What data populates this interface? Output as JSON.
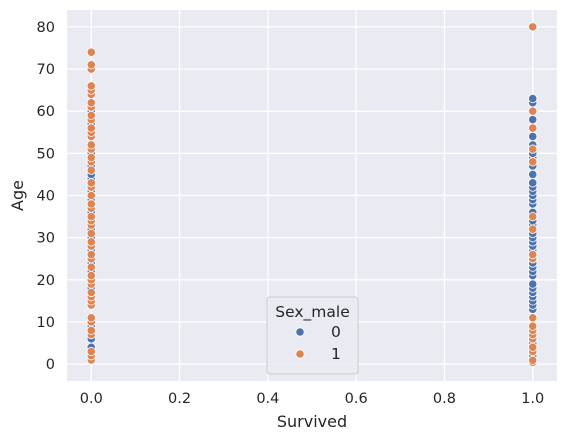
{
  "chart_data": {
    "type": "scatter",
    "title": "",
    "xlabel": "Survived",
    "ylabel": "Age",
    "xlim": [
      -0.055,
      1.055
    ],
    "ylim": [
      -4,
      84
    ],
    "xticks": [
      "0.0",
      "0.2",
      "0.4",
      "0.6",
      "0.8",
      "1.0"
    ],
    "yticks": [
      "0",
      "10",
      "20",
      "30",
      "40",
      "50",
      "60",
      "70",
      "80"
    ],
    "grid": true,
    "legend": {
      "title": "Sex_male",
      "placement": "lower-center",
      "entries": [
        "0",
        "1"
      ]
    },
    "series": [
      {
        "name": "0",
        "color": "#4c72b0",
        "points": [
          [
            0,
            4
          ],
          [
            0,
            6
          ],
          [
            0,
            9
          ],
          [
            0,
            14
          ],
          [
            0,
            18
          ],
          [
            0,
            22
          ],
          [
            0,
            24
          ],
          [
            0,
            27
          ],
          [
            0,
            30
          ],
          [
            0,
            32
          ],
          [
            0,
            36
          ],
          [
            0,
            39
          ],
          [
            0,
            41
          ],
          [
            0,
            44
          ],
          [
            0,
            45
          ],
          [
            0,
            47
          ],
          [
            0,
            50
          ],
          [
            0,
            57
          ],
          [
            0,
            60
          ],
          [
            1,
            0.75
          ],
          [
            1,
            1
          ],
          [
            1,
            2
          ],
          [
            1,
            3
          ],
          [
            1,
            4
          ],
          [
            1,
            5
          ],
          [
            1,
            6
          ],
          [
            1,
            8
          ],
          [
            1,
            11
          ],
          [
            1,
            13
          ],
          [
            1,
            14
          ],
          [
            1,
            15
          ],
          [
            1,
            16
          ],
          [
            1,
            17
          ],
          [
            1,
            18
          ],
          [
            1,
            19
          ],
          [
            1,
            21
          ],
          [
            1,
            22
          ],
          [
            1,
            23
          ],
          [
            1,
            24
          ],
          [
            1,
            25
          ],
          [
            1,
            27
          ],
          [
            1,
            28
          ],
          [
            1,
            29
          ],
          [
            1,
            30
          ],
          [
            1,
            31
          ],
          [
            1,
            33
          ],
          [
            1,
            34
          ],
          [
            1,
            35
          ],
          [
            1,
            36
          ],
          [
            1,
            38
          ],
          [
            1,
            39
          ],
          [
            1,
            40
          ],
          [
            1,
            41
          ],
          [
            1,
            42
          ],
          [
            1,
            43
          ],
          [
            1,
            45
          ],
          [
            1,
            47
          ],
          [
            1,
            48
          ],
          [
            1,
            49
          ],
          [
            1,
            50
          ],
          [
            1,
            52
          ],
          [
            1,
            54
          ],
          [
            1,
            56
          ],
          [
            1,
            58
          ],
          [
            1,
            60
          ],
          [
            1,
            62
          ],
          [
            1,
            63
          ]
        ]
      },
      {
        "name": "1",
        "color": "#dd8452",
        "points": [
          [
            0,
            1
          ],
          [
            0,
            2
          ],
          [
            0,
            3
          ],
          [
            0,
            7
          ],
          [
            0,
            8
          ],
          [
            0,
            10
          ],
          [
            0,
            11
          ],
          [
            0,
            14
          ],
          [
            0,
            15
          ],
          [
            0,
            16
          ],
          [
            0,
            17
          ],
          [
            0,
            19
          ],
          [
            0,
            20
          ],
          [
            0,
            21
          ],
          [
            0,
            23
          ],
          [
            0,
            25
          ],
          [
            0,
            26
          ],
          [
            0,
            28
          ],
          [
            0,
            29
          ],
          [
            0,
            31
          ],
          [
            0,
            33
          ],
          [
            0,
            34
          ],
          [
            0,
            35
          ],
          [
            0,
            37
          ],
          [
            0,
            38
          ],
          [
            0,
            40
          ],
          [
            0,
            42
          ],
          [
            0,
            43
          ],
          [
            0,
            46
          ],
          [
            0,
            48
          ],
          [
            0,
            49
          ],
          [
            0,
            51
          ],
          [
            0,
            52
          ],
          [
            0,
            54
          ],
          [
            0,
            55
          ],
          [
            0,
            56
          ],
          [
            0,
            58
          ],
          [
            0,
            59
          ],
          [
            0,
            61
          ],
          [
            0,
            62
          ],
          [
            0,
            64
          ],
          [
            0,
            65
          ],
          [
            0,
            66
          ],
          [
            0,
            70
          ],
          [
            0,
            71
          ],
          [
            0,
            74
          ],
          [
            1,
            0.42
          ],
          [
            1,
            0.92
          ],
          [
            1,
            3
          ],
          [
            1,
            4
          ],
          [
            1,
            6
          ],
          [
            1,
            7
          ],
          [
            1,
            8
          ],
          [
            1,
            9
          ],
          [
            1,
            11
          ],
          [
            1,
            25
          ],
          [
            1,
            26
          ],
          [
            1,
            32
          ],
          [
            1,
            35
          ],
          [
            1,
            48
          ],
          [
            1,
            51
          ],
          [
            1,
            56
          ],
          [
            1,
            60
          ],
          [
            1,
            80
          ]
        ]
      }
    ]
  }
}
